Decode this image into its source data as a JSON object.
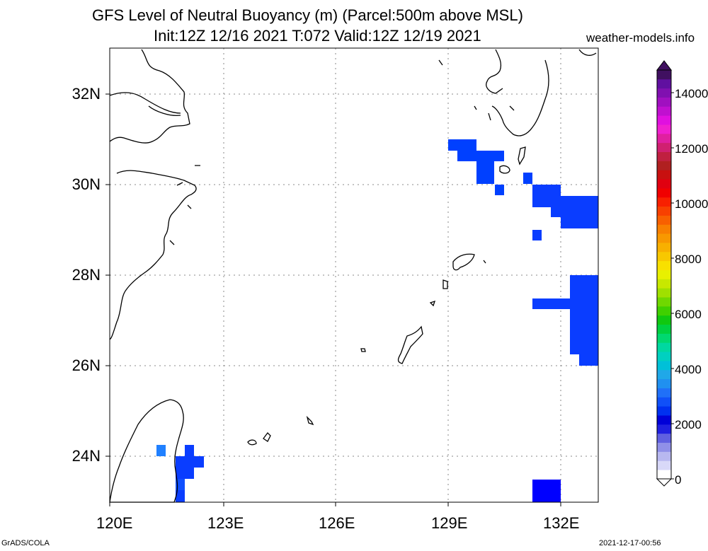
{
  "title": {
    "line1": "GFS Level of Neutral Buoyancy (m) (Parcel:500m above MSL)",
    "line2": "Init:12Z 12/16 2021 T:072 Valid:12Z 12/19 2021"
  },
  "site": "weather-models.info",
  "footer": {
    "left": "GrADS/COLA",
    "right": "2021-12-17-00:56"
  },
  "map": {
    "lon_range": [
      120,
      133.3
    ],
    "lat_range": [
      23,
      33
    ],
    "lat_labels": [
      "32N",
      "30N",
      "28N",
      "26N",
      "24N"
    ],
    "lon_labels": [
      "120E",
      "123E",
      "126E",
      "129E",
      "132E"
    ],
    "grid": "dotted",
    "field": "level of neutral buoyancy",
    "units": "m"
  },
  "colorbar": {
    "labels": [
      "0",
      "2000",
      "4000",
      "6000",
      "8000",
      "10000",
      "12000",
      "14000"
    ],
    "colors": [
      "#ffffff",
      "#d8d8f8",
      "#b8b8f0",
      "#9090e8",
      "#6060e0",
      "#2020e0",
      "#0000d8",
      "#0030f0",
      "#1050f8",
      "#2070f8",
      "#2090f0",
      "#20a8e8",
      "#00c0d8",
      "#00d0c0",
      "#00d8a0",
      "#00d870",
      "#00d040",
      "#10c810",
      "#40d000",
      "#70d800",
      "#a0e000",
      "#c8e800",
      "#e8f000",
      "#f8e000",
      "#f8c800",
      "#f8b000",
      "#f89800",
      "#f88000",
      "#f86000",
      "#f84000",
      "#f82000",
      "#f00000",
      "#e00010",
      "#c81010",
      "#b02020",
      "#c02040",
      "#d02070",
      "#e020a0",
      "#f020d0",
      "#e010e0",
      "#c010d0",
      "#a010c0",
      "#8010b0",
      "#6010a0",
      "#401060"
    ]
  },
  "field_cells": [
    {
      "region": "east-china-sea-north",
      "color": "#0040ff"
    },
    {
      "region": "east-of-kyushu",
      "color": "#0a3dff"
    },
    {
      "region": "east-of-ryukyu",
      "color": "#0a3dff"
    },
    {
      "region": "taiwan-southeast",
      "color": "#0a3dff"
    },
    {
      "region": "south-east-corner",
      "color": "#0000ff"
    }
  ]
}
